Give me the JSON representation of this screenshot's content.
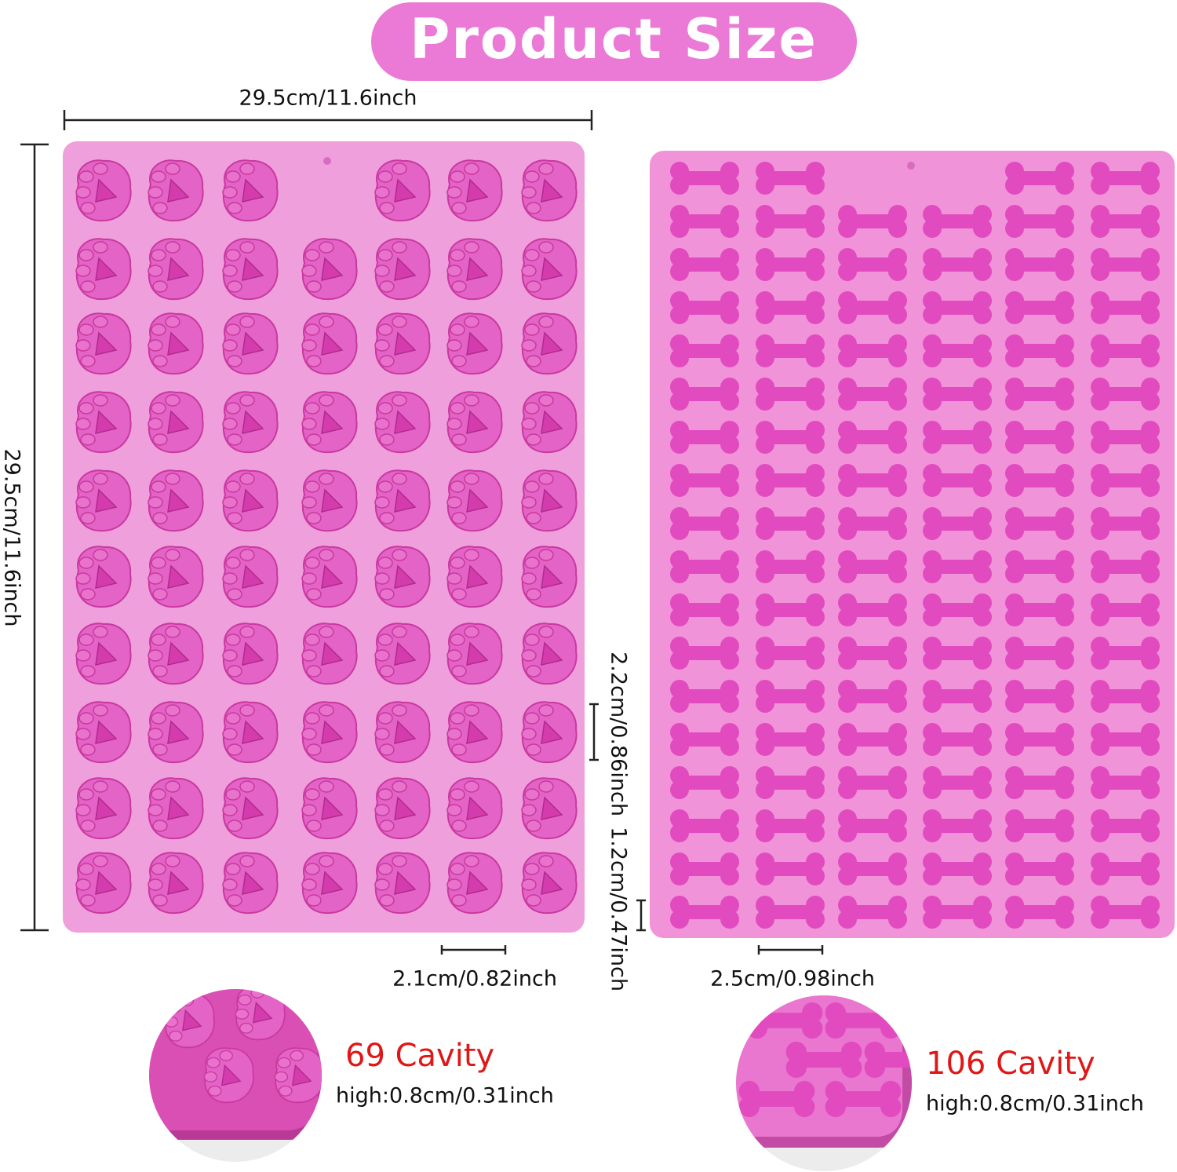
{
  "header": {
    "title": "Product Size"
  },
  "paw_mold": {
    "width_label": "29.5cm/11.6inch",
    "height_label": "29.5cm/11.6inch",
    "cavity_height_label": "2.2cm/0.86inch",
    "cavity_width_label": "2.1cm/0.82inch",
    "cavity_count": "69 Cavity",
    "depth": "high:0.8cm/0.31inch"
  },
  "bone_mold": {
    "cavity_height_label": "1.2cm/0.47inch",
    "cavity_width_label": "2.5cm/0.98inch",
    "cavity_count": "106 Cavity",
    "depth": "high:0.8cm/0.31inch"
  }
}
